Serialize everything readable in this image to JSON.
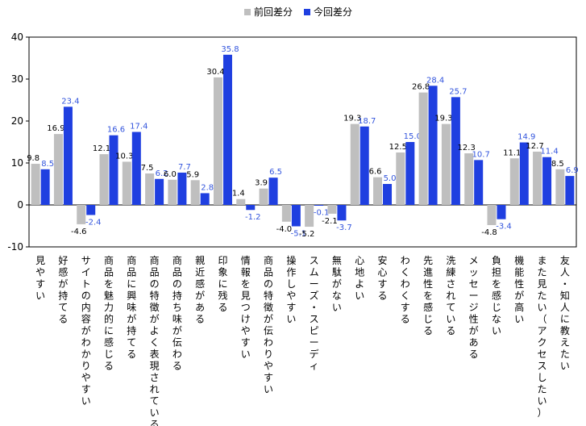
{
  "chart_data": {
    "type": "bar",
    "title": "",
    "xlabel": "",
    "ylabel": "",
    "ylim": [
      -10,
      40
    ],
    "yticks": [
      -10,
      0,
      10,
      20,
      30,
      40
    ],
    "grid": false,
    "legend_position": "top-center",
    "categories": [
      "見やすい",
      "好感が持てる",
      "サイトの内容がわかりやすい",
      "商品を魅力的に感じる",
      "商品に興味が持てる",
      "商品の特徴がよく表現されている",
      "商品の持ち味が伝わる",
      "親近感がある",
      "印象に残る",
      "情報を見つけやすい",
      "商品の特徴が伝わりやすい",
      "操作しやすい",
      "スムーズ・スピーディ",
      "無駄がない",
      "心地よい",
      "安心する",
      "わくわくする",
      "先進性を感じる",
      "洗練されている",
      "メッセージ性がある",
      "負担を感じない",
      "機能性が高い",
      "また見たい（アクセスしたい）",
      "友人・知人に教えたい"
    ],
    "series": [
      {
        "name": "前回差分",
        "color": "#bfbfbf",
        "label_color": "#000000",
        "values": [
          9.8,
          16.9,
          -4.6,
          12.1,
          10.3,
          7.5,
          6.0,
          5.9,
          30.4,
          1.4,
          3.9,
          -4.0,
          -5.2,
          -2.1,
          19.3,
          6.6,
          12.5,
          26.8,
          19.3,
          12.3,
          -4.8,
          11.1,
          12.7,
          8.5
        ]
      },
      {
        "name": "今回差分",
        "color": "#1f3fe0",
        "label_color": "#3355dd",
        "values": [
          8.5,
          23.4,
          -2.4,
          16.6,
          17.4,
          6.2,
          7.7,
          2.8,
          35.8,
          -1.2,
          6.5,
          -5.1,
          -0.1,
          -3.7,
          18.7,
          5.0,
          15.0,
          28.4,
          25.7,
          10.7,
          -3.4,
          14.9,
          11.4,
          6.9
        ]
      }
    ]
  }
}
